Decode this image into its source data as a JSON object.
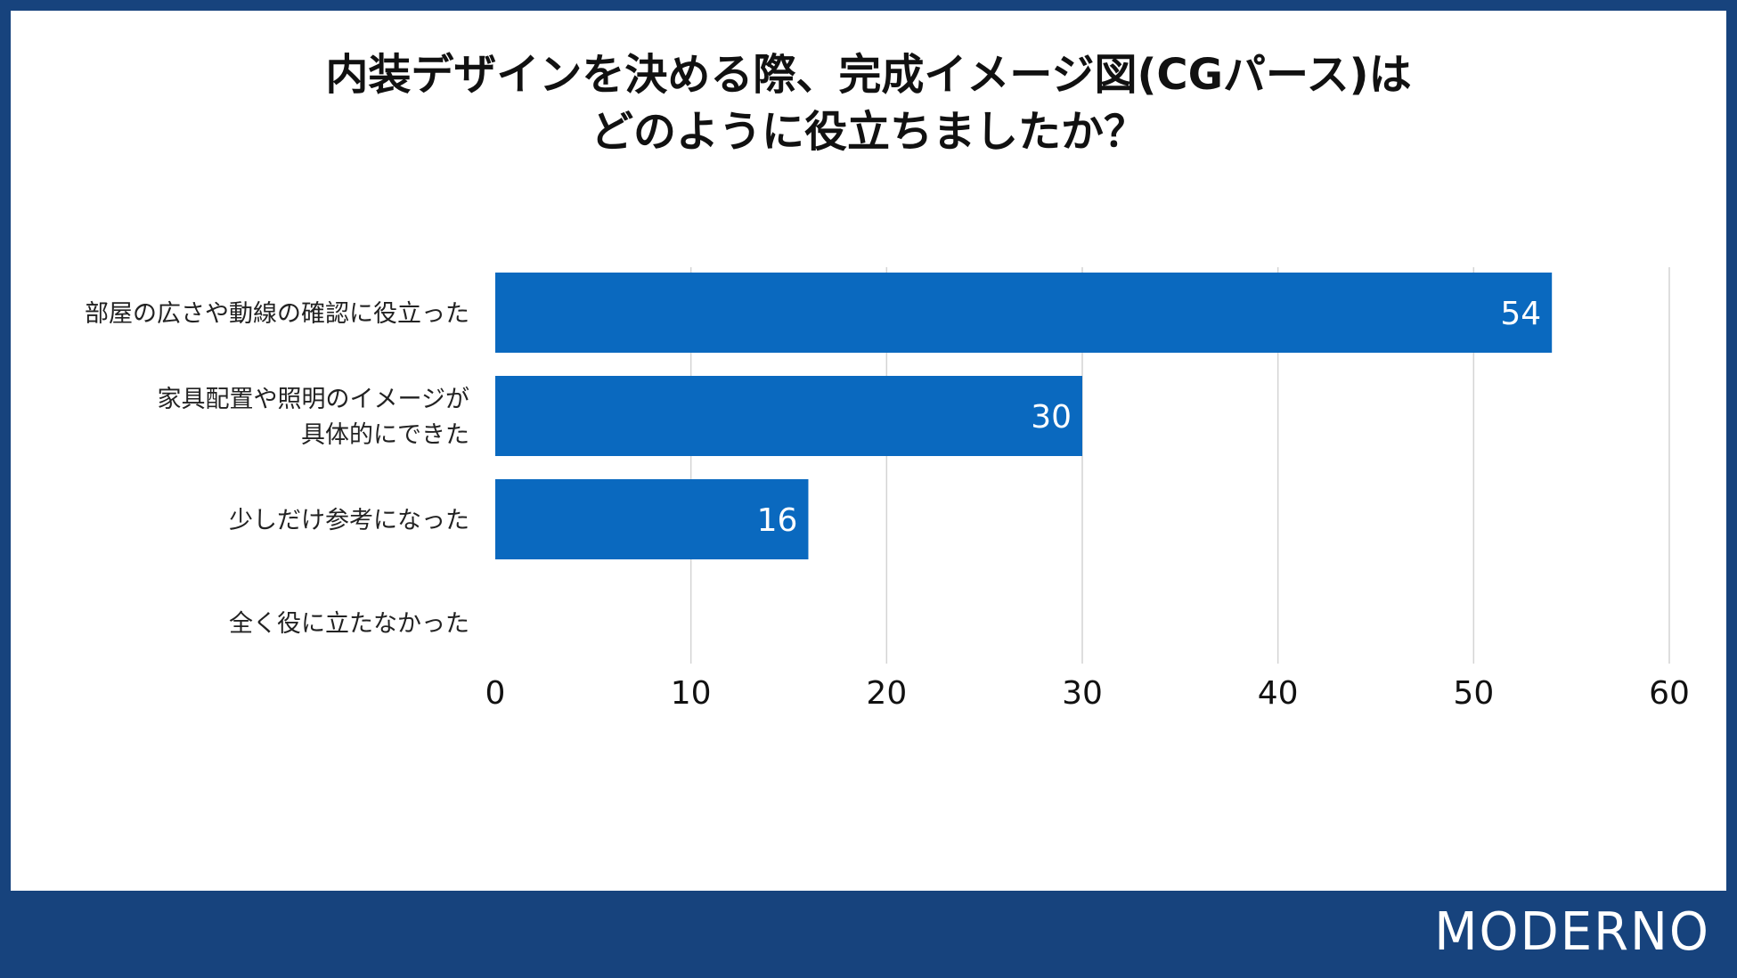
{
  "title_lines": [
    "内装デザインを決める際、完成イメージ図(CGパース)は",
    "どのように役立ちましたか？"
  ],
  "brand": "MODERNO",
  "colors": {
    "bar": "#0a69bf",
    "frame": "#17437d",
    "grid": "#d4d4d4",
    "value_label": "#ffffff"
  },
  "chart_data": {
    "type": "bar",
    "orientation": "horizontal",
    "title": "内装デザインを決める際、完成イメージ図(CGパース)はどのように役立ちましたか？",
    "categories": [
      [
        "部屋の広さや動線の確認に役立った"
      ],
      [
        "家具配置や照明のイメージが",
        "具体的にできた"
      ],
      [
        "少しだけ参考になった"
      ],
      [
        "全く役に立たなかった"
      ]
    ],
    "values": [
      54,
      30,
      16,
      0
    ],
    "data_labels": [
      "54",
      "30",
      "16",
      ""
    ],
    "xlim": [
      0,
      60
    ],
    "ticks": [
      0,
      10,
      20,
      30,
      40,
      50,
      60
    ],
    "tick_labels": [
      "0",
      "10",
      "20",
      "30",
      "40",
      "50",
      "60"
    ],
    "grid": true,
    "legend": "none",
    "xlabel": "",
    "ylabel": ""
  }
}
